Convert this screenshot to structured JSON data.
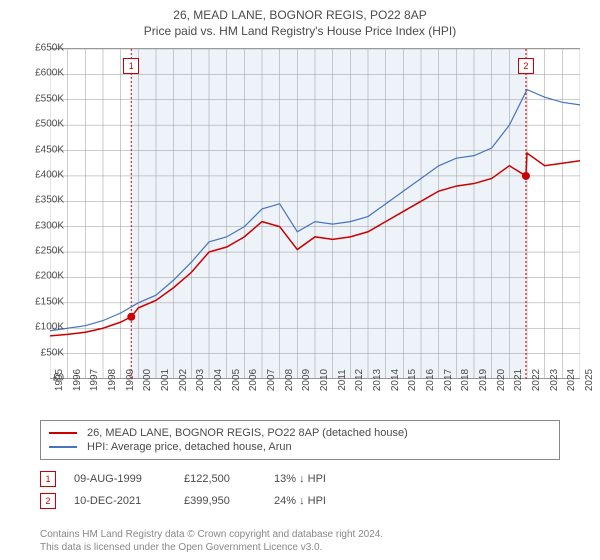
{
  "title": "26, MEAD LANE, BOGNOR REGIS, PO22 8AP",
  "subtitle": "Price paid vs. HM Land Registry's House Price Index (HPI)",
  "chart": {
    "type": "line",
    "background_color": "#ffffff",
    "grid_color": "#999999",
    "shade_color": "#eef3f9",
    "text_color": "#4b4b4b",
    "font_size": 10,
    "ylim": [
      0,
      650000
    ],
    "ytick_step": 50000,
    "ytick_labels": [
      "£0",
      "£50K",
      "£100K",
      "£150K",
      "£200K",
      "£250K",
      "£300K",
      "£350K",
      "£400K",
      "£450K",
      "£500K",
      "£550K",
      "£600K",
      "£650K"
    ],
    "x_start_year": 1995,
    "x_end_year": 2025,
    "xtick_years": [
      1995,
      1996,
      1997,
      1998,
      1999,
      2000,
      2001,
      2002,
      2003,
      2004,
      2005,
      2006,
      2007,
      2008,
      2009,
      2010,
      2011,
      2012,
      2013,
      2014,
      2015,
      2016,
      2017,
      2018,
      2019,
      2020,
      2021,
      2022,
      2023,
      2024,
      2025
    ],
    "series": [
      {
        "name": "price_paid",
        "label": "26, MEAD LANE, BOGNOR REGIS, PO22 8AP (detached house)",
        "color": "#cc0000",
        "line_width": 1.5,
        "data": [
          [
            1995,
            85000
          ],
          [
            1996,
            88000
          ],
          [
            1997,
            92000
          ],
          [
            1998,
            100000
          ],
          [
            1999,
            112000
          ],
          [
            1999.6,
            122500
          ],
          [
            2000,
            140000
          ],
          [
            2001,
            155000
          ],
          [
            2002,
            180000
          ],
          [
            2003,
            210000
          ],
          [
            2004,
            250000
          ],
          [
            2005,
            260000
          ],
          [
            2006,
            280000
          ],
          [
            2007,
            310000
          ],
          [
            2008,
            300000
          ],
          [
            2009,
            255000
          ],
          [
            2010,
            280000
          ],
          [
            2011,
            275000
          ],
          [
            2012,
            280000
          ],
          [
            2013,
            290000
          ],
          [
            2014,
            310000
          ],
          [
            2015,
            330000
          ],
          [
            2016,
            350000
          ],
          [
            2017,
            370000
          ],
          [
            2018,
            380000
          ],
          [
            2019,
            385000
          ],
          [
            2020,
            395000
          ],
          [
            2021,
            420000
          ],
          [
            2021.94,
            399950
          ],
          [
            2022,
            445000
          ],
          [
            2023,
            420000
          ],
          [
            2024,
            425000
          ],
          [
            2025,
            430000
          ]
        ]
      },
      {
        "name": "hpi",
        "label": "HPI: Average price, detached house, Arun",
        "color": "#4674c1",
        "line_width": 1.2,
        "data": [
          [
            1995,
            95000
          ],
          [
            1996,
            100000
          ],
          [
            1997,
            105000
          ],
          [
            1998,
            115000
          ],
          [
            1999,
            130000
          ],
          [
            2000,
            150000
          ],
          [
            2001,
            165000
          ],
          [
            2002,
            195000
          ],
          [
            2003,
            230000
          ],
          [
            2004,
            270000
          ],
          [
            2005,
            280000
          ],
          [
            2006,
            300000
          ],
          [
            2007,
            335000
          ],
          [
            2008,
            345000
          ],
          [
            2009,
            290000
          ],
          [
            2010,
            310000
          ],
          [
            2011,
            305000
          ],
          [
            2012,
            310000
          ],
          [
            2013,
            320000
          ],
          [
            2014,
            345000
          ],
          [
            2015,
            370000
          ],
          [
            2016,
            395000
          ],
          [
            2017,
            420000
          ],
          [
            2018,
            435000
          ],
          [
            2019,
            440000
          ],
          [
            2020,
            455000
          ],
          [
            2021,
            500000
          ],
          [
            2022,
            570000
          ],
          [
            2023,
            555000
          ],
          [
            2024,
            545000
          ],
          [
            2025,
            540000
          ]
        ]
      }
    ],
    "markers": [
      {
        "n": "1",
        "year": 1999.6,
        "value": 122500
      },
      {
        "n": "2",
        "year": 2021.94,
        "value": 399950
      }
    ]
  },
  "legend": {
    "items": [
      {
        "color": "#cc0000",
        "label": "26, MEAD LANE, BOGNOR REGIS, PO22 8AP (detached house)"
      },
      {
        "color": "#4674c1",
        "label": "HPI: Average price, detached house, Arun"
      }
    ]
  },
  "events": [
    {
      "n": "1",
      "date": "09-AUG-1999",
      "price": "£122,500",
      "delta": "13% ↓ HPI"
    },
    {
      "n": "2",
      "date": "10-DEC-2021",
      "price": "£399,950",
      "delta": "24% ↓ HPI"
    }
  ],
  "footer": {
    "line1": "Contains HM Land Registry data © Crown copyright and database right 2024.",
    "line2": "This data is licensed under the Open Government Licence v3.0."
  }
}
